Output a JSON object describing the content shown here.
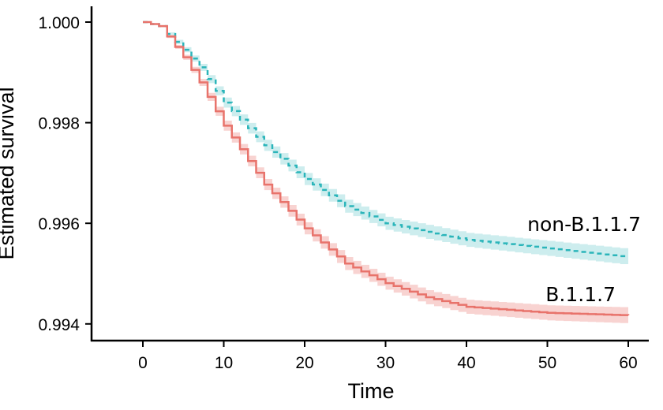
{
  "chart_data": {
    "type": "line",
    "title": "",
    "xlabel": "Time",
    "ylabel": "Estimated survival",
    "xlim": [
      -6,
      62
    ],
    "ylim": [
      0.99385,
      1.00025
    ],
    "xticks": [
      0,
      10,
      20,
      30,
      40,
      50,
      60
    ],
    "xtick_labels": [
      "0",
      "10",
      "20",
      "30",
      "40",
      "50",
      "60"
    ],
    "yticks": [
      0.994,
      0.996,
      0.998,
      1.0
    ],
    "ytick_labels": [
      "0.994",
      "0.996",
      "0.998",
      "1.000"
    ],
    "grid": false,
    "step": true,
    "series": [
      {
        "name": "non-B.1.1.7",
        "color": "#2BB5BA",
        "band_color": "#CDEDEE",
        "linestyle": "dashed",
        "x": [
          0,
          2,
          5,
          7,
          10,
          15,
          20,
          25,
          30,
          35,
          40,
          50,
          60
        ],
        "y": [
          1.0,
          0.99992,
          0.99945,
          0.9991,
          0.9984,
          0.99755,
          0.99688,
          0.99634,
          0.996,
          0.99583,
          0.99567,
          0.9955,
          0.99533
        ],
        "ci_halfwidth": [
          0,
          2e-05,
          5e-05,
          7e-05,
          0.0001,
          0.00011,
          0.00012,
          0.00013,
          0.00013,
          0.00014,
          0.00014,
          0.00015,
          0.00016
        ]
      },
      {
        "name": "B.1.1.7",
        "color": "#E8736B",
        "band_color": "#F8D3D1",
        "linestyle": "solid",
        "x": [
          0,
          2,
          5,
          7,
          10,
          15,
          20,
          25,
          30,
          35,
          40,
          50,
          60
        ],
        "y": [
          1.0,
          0.99992,
          0.9993,
          0.9988,
          0.99794,
          0.99677,
          0.9959,
          0.9952,
          0.99481,
          0.99453,
          0.99434,
          0.99422,
          0.99417
        ],
        "ci_halfwidth": [
          0,
          2e-05,
          5e-05,
          7e-05,
          0.0001,
          0.00011,
          0.00012,
          0.00013,
          0.00013,
          0.00014,
          0.00014,
          0.00015,
          0.00016
        ]
      }
    ],
    "annotations": [
      "non-B.1.1.7",
      "B.1.1.7"
    ]
  }
}
